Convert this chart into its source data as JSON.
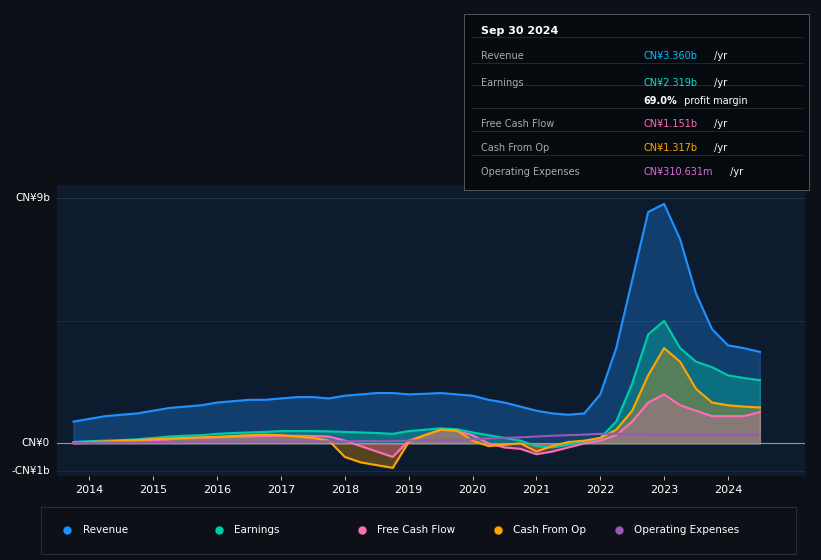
{
  "background_color": "#0d1117",
  "plot_bg_color": "#0d1b2e",
  "box_title": "Sep 30 2024",
  "ylim": [
    -1.2,
    9.5
  ],
  "xlim_start": 2013.5,
  "xlim_end": 2025.2,
  "xticks": [
    2014,
    2015,
    2016,
    2017,
    2018,
    2019,
    2020,
    2021,
    2022,
    2023,
    2024
  ],
  "ytick_values": [
    -1,
    0,
    9
  ],
  "ytick_labels": [
    "-CN¥1b",
    "CN¥0",
    "CN¥9b"
  ],
  "colors": {
    "revenue": "#1e90ff",
    "earnings": "#00cba9",
    "free_cash_flow": "#ff6eb4",
    "cash_from_op": "#ffa500",
    "op_expenses": "#9b59b6"
  },
  "legend": [
    {
      "label": "Revenue",
      "color": "#1e90ff"
    },
    {
      "label": "Earnings",
      "color": "#00cba9"
    },
    {
      "label": "Free Cash Flow",
      "color": "#ff6eb4"
    },
    {
      "label": "Cash From Op",
      "color": "#ffa500"
    },
    {
      "label": "Operating Expenses",
      "color": "#9b59b6"
    }
  ],
  "series": {
    "years": [
      2013.75,
      2014.0,
      2014.25,
      2014.5,
      2014.75,
      2015.0,
      2015.25,
      2015.5,
      2015.75,
      2016.0,
      2016.25,
      2016.5,
      2016.75,
      2017.0,
      2017.25,
      2017.5,
      2017.75,
      2018.0,
      2018.25,
      2018.5,
      2018.75,
      2019.0,
      2019.25,
      2019.5,
      2019.75,
      2020.0,
      2020.25,
      2020.5,
      2020.75,
      2021.0,
      2021.25,
      2021.5,
      2021.75,
      2022.0,
      2022.25,
      2022.5,
      2022.75,
      2023.0,
      2023.25,
      2023.5,
      2023.75,
      2024.0,
      2024.25,
      2024.5
    ],
    "revenue": [
      0.8,
      0.9,
      1.0,
      1.05,
      1.1,
      1.2,
      1.3,
      1.35,
      1.4,
      1.5,
      1.55,
      1.6,
      1.6,
      1.65,
      1.7,
      1.7,
      1.65,
      1.75,
      1.8,
      1.85,
      1.85,
      1.8,
      1.82,
      1.85,
      1.8,
      1.75,
      1.6,
      1.5,
      1.35,
      1.2,
      1.1,
      1.05,
      1.1,
      1.8,
      3.5,
      6.0,
      8.5,
      8.8,
      7.5,
      5.5,
      4.2,
      3.6,
      3.5,
      3.36
    ],
    "earnings": [
      0.05,
      0.08,
      0.1,
      0.12,
      0.15,
      0.2,
      0.25,
      0.28,
      0.3,
      0.35,
      0.38,
      0.4,
      0.42,
      0.45,
      0.45,
      0.45,
      0.44,
      0.42,
      0.4,
      0.38,
      0.35,
      0.45,
      0.5,
      0.55,
      0.52,
      0.4,
      0.3,
      0.2,
      0.1,
      -0.1,
      -0.15,
      -0.05,
      0.05,
      0.2,
      0.8,
      2.2,
      4.0,
      4.5,
      3.5,
      3.0,
      2.8,
      2.5,
      2.4,
      2.32
    ],
    "free_cash_flow": [
      0.0,
      0.02,
      0.05,
      0.07,
      0.1,
      0.12,
      0.15,
      0.18,
      0.2,
      0.22,
      0.24,
      0.25,
      0.27,
      0.28,
      0.28,
      0.27,
      0.25,
      0.1,
      -0.1,
      -0.3,
      -0.5,
      0.1,
      0.3,
      0.5,
      0.45,
      0.3,
      0.0,
      -0.15,
      -0.2,
      -0.4,
      -0.3,
      -0.15,
      0.0,
      0.1,
      0.3,
      0.8,
      1.5,
      1.8,
      1.4,
      1.2,
      1.0,
      1.0,
      1.0,
      1.15
    ],
    "cash_from_op": [
      0.02,
      0.05,
      0.07,
      0.1,
      0.12,
      0.15,
      0.18,
      0.2,
      0.22,
      0.24,
      0.27,
      0.3,
      0.32,
      0.3,
      0.25,
      0.2,
      0.1,
      -0.5,
      -0.7,
      -0.8,
      -0.9,
      0.05,
      0.3,
      0.5,
      0.48,
      0.1,
      -0.1,
      -0.05,
      0.0,
      -0.3,
      -0.1,
      0.05,
      0.1,
      0.2,
      0.5,
      1.2,
      2.5,
      3.5,
      3.0,
      2.0,
      1.5,
      1.4,
      1.35,
      1.32
    ],
    "op_expenses": [
      0.02,
      0.02,
      0.03,
      0.03,
      0.03,
      0.04,
      0.04,
      0.05,
      0.05,
      0.06,
      0.06,
      0.06,
      0.07,
      0.07,
      0.07,
      0.07,
      0.07,
      0.07,
      0.08,
      0.08,
      0.08,
      0.1,
      0.12,
      0.12,
      0.12,
      0.15,
      0.18,
      0.2,
      0.22,
      0.25,
      0.28,
      0.3,
      0.32,
      0.35,
      0.35,
      0.33,
      0.32,
      0.31,
      0.31,
      0.31,
      0.31,
      0.31,
      0.31,
      0.31
    ]
  }
}
